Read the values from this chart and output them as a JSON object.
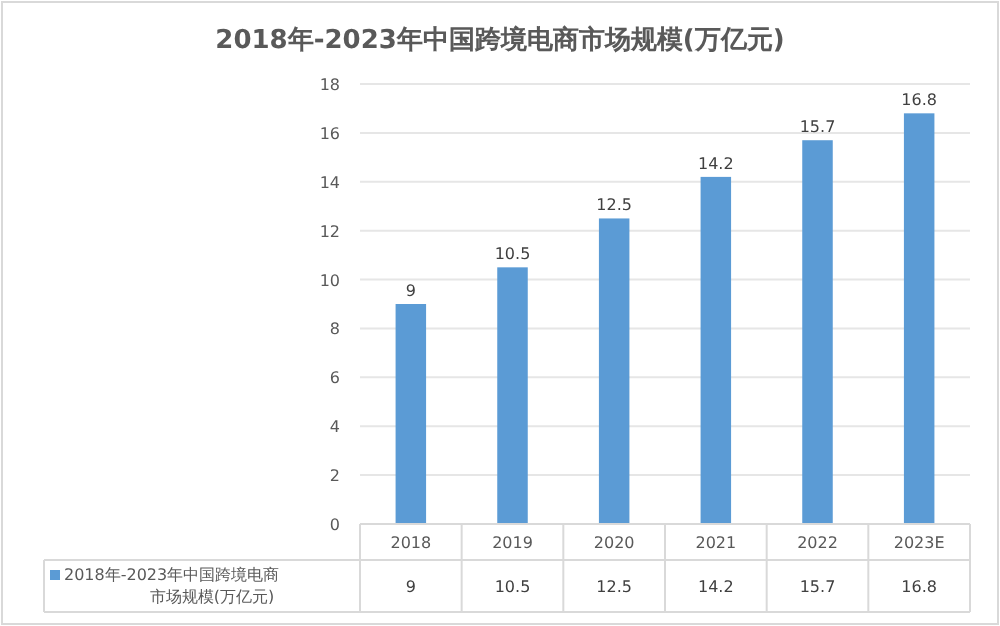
{
  "chart_data": {
    "type": "bar",
    "title": "2018年-2023年中国跨境电商市场规模(万亿元)",
    "categories": [
      "2018",
      "2019",
      "2020",
      "2021",
      "2022",
      "2023E"
    ],
    "series": [
      {
        "name": "2018年-2023年中国跨境电商市场规模(万亿元)",
        "color": "#5b9bd5",
        "values": [
          9,
          10.5,
          12.5,
          14.2,
          15.7,
          16.8
        ],
        "value_labels": [
          "9",
          "10.5",
          "12.5",
          "14.2",
          "15.7",
          "16.8"
        ]
      }
    ],
    "ylim": [
      0,
      18
    ],
    "yticks": [
      0,
      2,
      4,
      6,
      8,
      10,
      12,
      14,
      16,
      18
    ],
    "grid": "y",
    "annotations": [
      "9",
      "10.5",
      "12.5",
      "14.2",
      "15.7",
      "16.8"
    ],
    "data_labels": true,
    "legend": "bottom"
  }
}
